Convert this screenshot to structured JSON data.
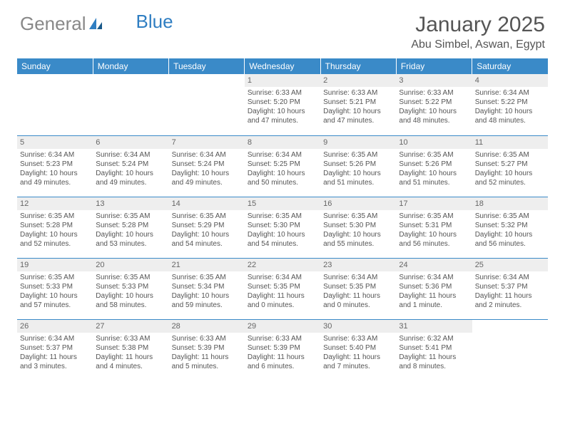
{
  "brand": {
    "part1": "General",
    "part2": "Blue"
  },
  "title": "January 2025",
  "location": "Abu Simbel, Aswan, Egypt",
  "header_bg": "#3a8ac8",
  "header_text": "#ffffff",
  "daynum_bg": "#eeeeee",
  "cell_border": "#3a8ac8",
  "days": [
    "Sunday",
    "Monday",
    "Tuesday",
    "Wednesday",
    "Thursday",
    "Friday",
    "Saturday"
  ],
  "weeks": [
    [
      {
        "n": "",
        "sunrise": "",
        "sunset": "",
        "daylight": ""
      },
      {
        "n": "",
        "sunrise": "",
        "sunset": "",
        "daylight": ""
      },
      {
        "n": "",
        "sunrise": "",
        "sunset": "",
        "daylight": ""
      },
      {
        "n": "1",
        "sunrise": "Sunrise: 6:33 AM",
        "sunset": "Sunset: 5:20 PM",
        "daylight": "Daylight: 10 hours and 47 minutes."
      },
      {
        "n": "2",
        "sunrise": "Sunrise: 6:33 AM",
        "sunset": "Sunset: 5:21 PM",
        "daylight": "Daylight: 10 hours and 47 minutes."
      },
      {
        "n": "3",
        "sunrise": "Sunrise: 6:33 AM",
        "sunset": "Sunset: 5:22 PM",
        "daylight": "Daylight: 10 hours and 48 minutes."
      },
      {
        "n": "4",
        "sunrise": "Sunrise: 6:34 AM",
        "sunset": "Sunset: 5:22 PM",
        "daylight": "Daylight: 10 hours and 48 minutes."
      }
    ],
    [
      {
        "n": "5",
        "sunrise": "Sunrise: 6:34 AM",
        "sunset": "Sunset: 5:23 PM",
        "daylight": "Daylight: 10 hours and 49 minutes."
      },
      {
        "n": "6",
        "sunrise": "Sunrise: 6:34 AM",
        "sunset": "Sunset: 5:24 PM",
        "daylight": "Daylight: 10 hours and 49 minutes."
      },
      {
        "n": "7",
        "sunrise": "Sunrise: 6:34 AM",
        "sunset": "Sunset: 5:24 PM",
        "daylight": "Daylight: 10 hours and 49 minutes."
      },
      {
        "n": "8",
        "sunrise": "Sunrise: 6:34 AM",
        "sunset": "Sunset: 5:25 PM",
        "daylight": "Daylight: 10 hours and 50 minutes."
      },
      {
        "n": "9",
        "sunrise": "Sunrise: 6:35 AM",
        "sunset": "Sunset: 5:26 PM",
        "daylight": "Daylight: 10 hours and 51 minutes."
      },
      {
        "n": "10",
        "sunrise": "Sunrise: 6:35 AM",
        "sunset": "Sunset: 5:26 PM",
        "daylight": "Daylight: 10 hours and 51 minutes."
      },
      {
        "n": "11",
        "sunrise": "Sunrise: 6:35 AM",
        "sunset": "Sunset: 5:27 PM",
        "daylight": "Daylight: 10 hours and 52 minutes."
      }
    ],
    [
      {
        "n": "12",
        "sunrise": "Sunrise: 6:35 AM",
        "sunset": "Sunset: 5:28 PM",
        "daylight": "Daylight: 10 hours and 52 minutes."
      },
      {
        "n": "13",
        "sunrise": "Sunrise: 6:35 AM",
        "sunset": "Sunset: 5:28 PM",
        "daylight": "Daylight: 10 hours and 53 minutes."
      },
      {
        "n": "14",
        "sunrise": "Sunrise: 6:35 AM",
        "sunset": "Sunset: 5:29 PM",
        "daylight": "Daylight: 10 hours and 54 minutes."
      },
      {
        "n": "15",
        "sunrise": "Sunrise: 6:35 AM",
        "sunset": "Sunset: 5:30 PM",
        "daylight": "Daylight: 10 hours and 54 minutes."
      },
      {
        "n": "16",
        "sunrise": "Sunrise: 6:35 AM",
        "sunset": "Sunset: 5:30 PM",
        "daylight": "Daylight: 10 hours and 55 minutes."
      },
      {
        "n": "17",
        "sunrise": "Sunrise: 6:35 AM",
        "sunset": "Sunset: 5:31 PM",
        "daylight": "Daylight: 10 hours and 56 minutes."
      },
      {
        "n": "18",
        "sunrise": "Sunrise: 6:35 AM",
        "sunset": "Sunset: 5:32 PM",
        "daylight": "Daylight: 10 hours and 56 minutes."
      }
    ],
    [
      {
        "n": "19",
        "sunrise": "Sunrise: 6:35 AM",
        "sunset": "Sunset: 5:33 PM",
        "daylight": "Daylight: 10 hours and 57 minutes."
      },
      {
        "n": "20",
        "sunrise": "Sunrise: 6:35 AM",
        "sunset": "Sunset: 5:33 PM",
        "daylight": "Daylight: 10 hours and 58 minutes."
      },
      {
        "n": "21",
        "sunrise": "Sunrise: 6:35 AM",
        "sunset": "Sunset: 5:34 PM",
        "daylight": "Daylight: 10 hours and 59 minutes."
      },
      {
        "n": "22",
        "sunrise": "Sunrise: 6:34 AM",
        "sunset": "Sunset: 5:35 PM",
        "daylight": "Daylight: 11 hours and 0 minutes."
      },
      {
        "n": "23",
        "sunrise": "Sunrise: 6:34 AM",
        "sunset": "Sunset: 5:35 PM",
        "daylight": "Daylight: 11 hours and 0 minutes."
      },
      {
        "n": "24",
        "sunrise": "Sunrise: 6:34 AM",
        "sunset": "Sunset: 5:36 PM",
        "daylight": "Daylight: 11 hours and 1 minute."
      },
      {
        "n": "25",
        "sunrise": "Sunrise: 6:34 AM",
        "sunset": "Sunset: 5:37 PM",
        "daylight": "Daylight: 11 hours and 2 minutes."
      }
    ],
    [
      {
        "n": "26",
        "sunrise": "Sunrise: 6:34 AM",
        "sunset": "Sunset: 5:37 PM",
        "daylight": "Daylight: 11 hours and 3 minutes."
      },
      {
        "n": "27",
        "sunrise": "Sunrise: 6:33 AM",
        "sunset": "Sunset: 5:38 PM",
        "daylight": "Daylight: 11 hours and 4 minutes."
      },
      {
        "n": "28",
        "sunrise": "Sunrise: 6:33 AM",
        "sunset": "Sunset: 5:39 PM",
        "daylight": "Daylight: 11 hours and 5 minutes."
      },
      {
        "n": "29",
        "sunrise": "Sunrise: 6:33 AM",
        "sunset": "Sunset: 5:39 PM",
        "daylight": "Daylight: 11 hours and 6 minutes."
      },
      {
        "n": "30",
        "sunrise": "Sunrise: 6:33 AM",
        "sunset": "Sunset: 5:40 PM",
        "daylight": "Daylight: 11 hours and 7 minutes."
      },
      {
        "n": "31",
        "sunrise": "Sunrise: 6:32 AM",
        "sunset": "Sunset: 5:41 PM",
        "daylight": "Daylight: 11 hours and 8 minutes."
      },
      {
        "n": "",
        "sunrise": "",
        "sunset": "",
        "daylight": ""
      }
    ]
  ]
}
